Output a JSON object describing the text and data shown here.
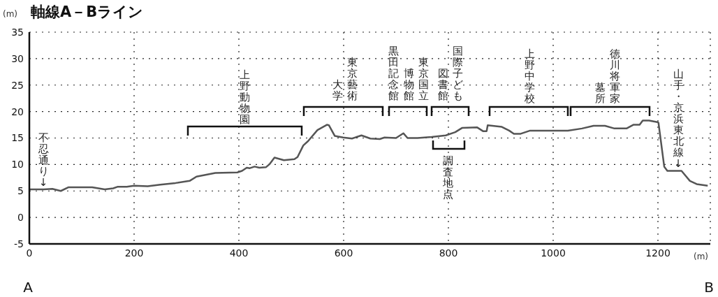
{
  "chart_data": {
    "type": "line",
    "title": "軸線A－Bライン",
    "ylabel": "(m)",
    "xlabel": "(m)",
    "x": [
      0,
      27,
      44,
      60,
      75,
      120,
      144,
      160,
      169,
      186,
      200,
      226,
      250,
      279,
      306,
      319,
      355,
      397,
      406,
      415,
      421,
      430,
      439,
      452,
      459,
      468,
      486,
      506,
      512,
      523,
      532,
      550,
      568,
      572,
      583,
      599,
      616,
      634,
      651,
      669,
      678,
      700,
      714,
      722,
      741,
      768,
      795,
      813,
      826,
      855,
      866,
      873,
      875,
      902,
      916,
      925,
      938,
      956,
      1001,
      1028,
      1055,
      1077,
      1099,
      1117,
      1140,
      1153,
      1165,
      1171,
      1183,
      1199,
      1201,
      1212,
      1218,
      1245,
      1261,
      1274,
      1295
    ],
    "values": [
      5.3,
      5.3,
      5.4,
      5.0,
      5.7,
      5.7,
      5.3,
      5.5,
      5.8,
      5.8,
      6.0,
      5.9,
      6.2,
      6.5,
      6.9,
      7.7,
      8.4,
      8.5,
      8.8,
      9.4,
      9.3,
      9.6,
      9.4,
      9.5,
      10.1,
      11.3,
      10.8,
      11.0,
      11.4,
      13.6,
      14.4,
      16.5,
      17.5,
      17.4,
      15.4,
      15.1,
      14.9,
      15.5,
      14.9,
      14.8,
      15.1,
      15.0,
      15.9,
      15.0,
      15.0,
      15.2,
      15.5,
      16.1,
      16.9,
      17.0,
      16.3,
      16.3,
      17.4,
      17.1,
      16.4,
      15.8,
      15.8,
      16.4,
      16.4,
      16.4,
      16.8,
      17.3,
      17.3,
      16.8,
      16.8,
      17.5,
      17.5,
      18.3,
      18.3,
      18.0,
      17.9,
      9.6,
      8.8,
      8.8,
      6.9,
      6.3,
      6.0
    ],
    "color": "#555555",
    "xlim": [
      0,
      1300
    ],
    "xticks": [
      0,
      200,
      400,
      600,
      800,
      1000,
      1200
    ],
    "ylim": [
      -5,
      35
    ],
    "yticks": [
      -5,
      0,
      5,
      10,
      15,
      20,
      25,
      30,
      35
    ],
    "grid": true,
    "annotations": [
      "不忍通り↓",
      "上野動物園",
      "東京藝術大学",
      "黒田記念館",
      "東京国立博物館",
      "国際子ども図書館",
      "上野中学校",
      "徳川将軍家墓所",
      "山手・京浜東北線↓",
      "調査地点",
      "A",
      "B"
    ]
  }
}
